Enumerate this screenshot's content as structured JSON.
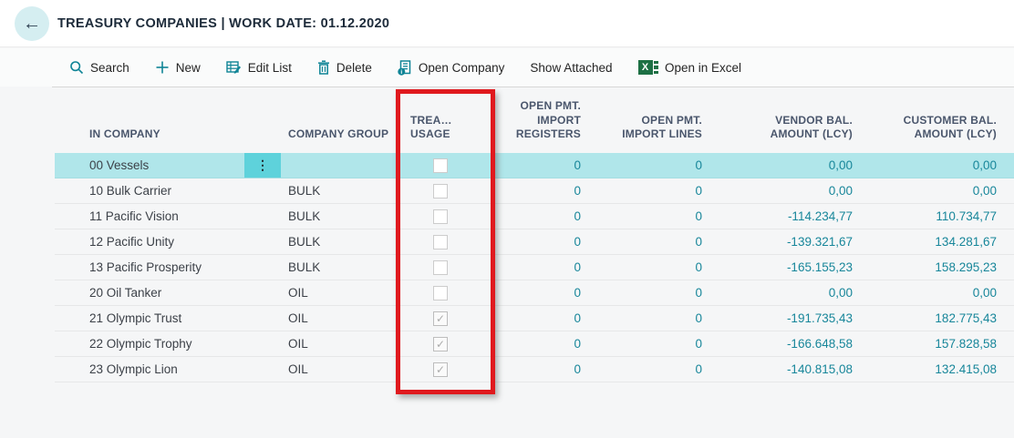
{
  "titlebar": {
    "title": "TREASURY COMPANIES | WORK DATE: 01.12.2020"
  },
  "icons": {
    "back_arrow": "←",
    "row_menu": "⋮",
    "excel_letter": "X"
  },
  "toolbar": {
    "search_label": "Search",
    "new_label": "New",
    "edit_list_label": "Edit List",
    "delete_label": "Delete",
    "open_company_label": "Open Company",
    "show_attached_label": "Show Attached",
    "open_in_excel_label": "Open in Excel"
  },
  "table": {
    "columns": {
      "company": "IN COMPANY",
      "group": "COMPANY GROUP",
      "usage": "TREA…\nUSAGE",
      "registers": "OPEN PMT.\nIMPORT\nREGISTERS",
      "lines": "OPEN PMT.\nIMPORT LINES",
      "vendor": "VENDOR BAL.\nAMOUNT (LCY)",
      "customer": "CUSTOMER BAL.\nAMOUNT (LCY)"
    },
    "rows": [
      {
        "company": "00 Vessels",
        "group": "",
        "usage": false,
        "registers": "0",
        "lines": "0",
        "vendor": "0,00",
        "customer": "0,00",
        "selected": true
      },
      {
        "company": "10 Bulk Carrier",
        "group": "BULK",
        "usage": false,
        "registers": "0",
        "lines": "0",
        "vendor": "0,00",
        "customer": "0,00",
        "selected": false
      },
      {
        "company": "11 Pacific Vision",
        "group": "BULK",
        "usage": false,
        "registers": "0",
        "lines": "0",
        "vendor": "-114.234,77",
        "customer": "110.734,77",
        "selected": false
      },
      {
        "company": "12 Pacific Unity",
        "group": "BULK",
        "usage": false,
        "registers": "0",
        "lines": "0",
        "vendor": "-139.321,67",
        "customer": "134.281,67",
        "selected": false
      },
      {
        "company": "13 Pacific Prosperity",
        "group": "BULK",
        "usage": false,
        "registers": "0",
        "lines": "0",
        "vendor": "-165.155,23",
        "customer": "158.295,23",
        "selected": false
      },
      {
        "company": "20 Oil Tanker",
        "group": "OIL",
        "usage": false,
        "registers": "0",
        "lines": "0",
        "vendor": "0,00",
        "customer": "0,00",
        "selected": false
      },
      {
        "company": "21 Olympic Trust",
        "group": "OIL",
        "usage": true,
        "registers": "0",
        "lines": "0",
        "vendor": "-191.735,43",
        "customer": "182.775,43",
        "selected": false
      },
      {
        "company": "22 Olympic Trophy",
        "group": "OIL",
        "usage": true,
        "registers": "0",
        "lines": "0",
        "vendor": "-166.648,58",
        "customer": "157.828,58",
        "selected": false
      },
      {
        "company": "23 Olympic Lion",
        "group": "OIL",
        "usage": true,
        "registers": "0",
        "lines": "0",
        "vendor": "-140.815,08",
        "customer": "132.415,08",
        "selected": false
      }
    ]
  },
  "colors": {
    "accent_teal": "#0f8496",
    "selection_teal": "#b0e6ea",
    "selection_menu_teal": "#5ed2db",
    "number_teal": "#17869a",
    "excel_green": "#1d7044",
    "highlight_red": "#e0191e"
  }
}
